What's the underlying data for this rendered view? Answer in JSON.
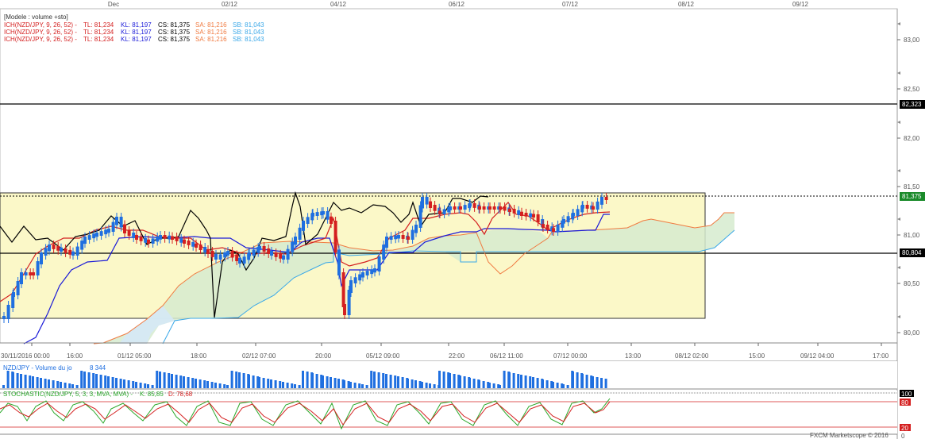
{
  "top_axis": {
    "labels": [
      "Dec",
      "02/12",
      "04/12",
      "06/12",
      "07/12",
      "08/12",
      "09/12"
    ]
  },
  "main_panel": {
    "legend": {
      "title": "[Modele : volume +sto]",
      "rows": [
        {
          "name": "ICH(NZD/JPY, 9, 26, 52) -",
          "tl": "TL: 81,234",
          "kl": "KL: 81,197",
          "cs": "CS: 81,375",
          "sa": "SA: 81,216",
          "sb": "SB: 81,043"
        },
        {
          "name": "ICH(NZD/JPY, 9, 26, 52) -",
          "tl": "TL: 81,234",
          "kl": "KL: 81,197",
          "cs": "CS: 81,375",
          "sa": "SA: 81,216",
          "sb": "SB: 81,043"
        },
        {
          "name": "ICH(NZD/JPY, 9, 26, 52) -",
          "tl": "TL: 81,234",
          "kl": "KL: 81,197",
          "cs": "CS: 81,375",
          "sa": "SA: 81,216",
          "sb": "SB: 81,043"
        }
      ]
    },
    "price_scale": [
      "83,00",
      "82,50",
      "82,00",
      "81,50",
      "81,00",
      "80,50",
      "80,00"
    ],
    "price_tags": {
      "upper_line": "82,323",
      "current": "81,375",
      "lower_line": "80,804"
    }
  },
  "time_axis": {
    "labels": [
      "30/11/2016 00:00",
      "16:00",
      "01/12 05:00",
      "18:00",
      "02/12 07:00",
      "20:00",
      "05/12 09:00",
      "22:00",
      "06/12 11:00",
      "07/12 00:00",
      "13:00",
      "08/12 02:00",
      "15:00",
      "09/12 04:00",
      "17:00"
    ]
  },
  "volume_panel": {
    "legend": "NZD/JPY - Volume du jo",
    "value": "8 344"
  },
  "stochastic_panel": {
    "legend": "STOCHASTIC(NZD/JPY, 5, 3, 3, MVA, MVA) -",
    "k": "K: 85,85",
    "d": "D: 78,68",
    "scale": [
      "100",
      "80",
      "20",
      "0"
    ]
  },
  "footer": {
    "brand": "FXCM Marketscope © 2016"
  },
  "colors": {
    "bull": "#1f6fe0",
    "bear": "#d42020",
    "tenkan": "#d42020",
    "kijun": "#1a1ad8",
    "chikou": "#000000",
    "senkou_a": "#f07a40",
    "senkou_b": "#3aa8e8",
    "box_fill": "#fbf8c8",
    "kumo_green": "#dbeed4",
    "kumo_blue": "#d4e8f8"
  }
}
